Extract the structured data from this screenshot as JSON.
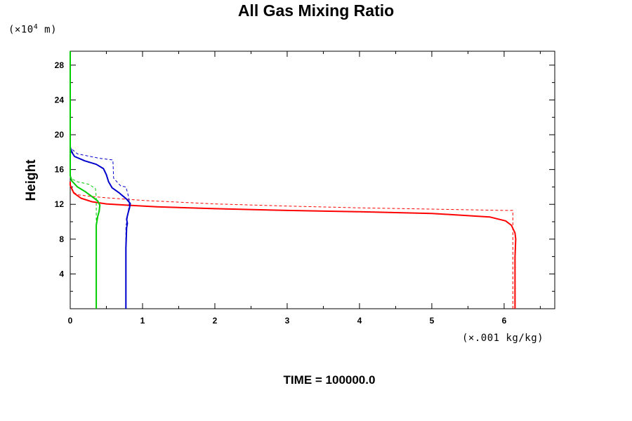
{
  "chart_data": {
    "type": "line",
    "title": "All Gas Mixing Ratio",
    "ylabel": "Height",
    "y_unit_prefix": "(×10",
    "y_unit_exp": "4",
    "y_unit_suffix": " m)",
    "x_unit": "(×.001 kg/kg)",
    "footer": "TIME = 100000.0",
    "xlim": [
      0,
      6.7
    ],
    "ylim": [
      0,
      29.6
    ],
    "x_ticks": [
      "0",
      "1",
      "2",
      "3",
      "4",
      "5",
      "6"
    ],
    "y_ticks": [
      "4",
      "8",
      "12",
      "16",
      "20",
      "24",
      "28"
    ],
    "grid": false,
    "series": [
      {
        "color": "#ff0000",
        "style": "solid",
        "points": [
          [
            6.15,
            0
          ],
          [
            6.15,
            6
          ],
          [
            6.16,
            8
          ],
          [
            6.15,
            8.7
          ],
          [
            6.1,
            9.6
          ],
          [
            6.02,
            10.1
          ],
          [
            5.8,
            10.55
          ],
          [
            5.0,
            10.95
          ],
          [
            4.0,
            11.15
          ],
          [
            3.0,
            11.3
          ],
          [
            2.0,
            11.5
          ],
          [
            1.2,
            11.72
          ],
          [
            0.8,
            11.9
          ],
          [
            0.5,
            12.05
          ],
          [
            0.3,
            12.3
          ],
          [
            0.15,
            12.7
          ],
          [
            0.05,
            13.3
          ],
          [
            0.0,
            14.2
          ],
          [
            0.0,
            14.6
          ]
        ]
      },
      {
        "color": "#ff0000",
        "style": "dashed",
        "points": [
          [
            6.12,
            0
          ],
          [
            6.12,
            11.3
          ],
          [
            6.0,
            11.3
          ],
          [
            5.0,
            11.45
          ],
          [
            4.0,
            11.6
          ],
          [
            3.0,
            11.8
          ],
          [
            2.0,
            12.05
          ],
          [
            1.0,
            12.45
          ],
          [
            0.5,
            12.75
          ],
          [
            0.3,
            12.9
          ],
          [
            0.1,
            13.1
          ],
          [
            0.03,
            13.5
          ],
          [
            0.0,
            14.2
          ]
        ]
      },
      {
        "color": "#0000cc",
        "style": "solid",
        "points": [
          [
            0.77,
            0
          ],
          [
            0.77,
            7
          ],
          [
            0.78,
            9.3
          ],
          [
            0.79,
            9.8
          ],
          [
            0.78,
            10.3
          ],
          [
            0.8,
            11.0
          ],
          [
            0.82,
            11.6
          ],
          [
            0.83,
            12.1
          ],
          [
            0.78,
            12.6
          ],
          [
            0.68,
            13.3
          ],
          [
            0.58,
            13.9
          ],
          [
            0.53,
            14.6
          ],
          [
            0.5,
            15.4
          ],
          [
            0.46,
            16.1
          ],
          [
            0.36,
            16.6
          ],
          [
            0.2,
            17.0
          ],
          [
            0.06,
            17.5
          ],
          [
            0.02,
            18.0
          ],
          [
            0.0,
            18.6
          ],
          [
            0.0,
            19.0
          ]
        ]
      },
      {
        "color": "#0000cc",
        "style": "dashed",
        "points": [
          [
            0.77,
            0
          ],
          [
            0.77,
            9.4
          ],
          [
            0.8,
            11.0
          ],
          [
            0.82,
            12.3
          ],
          [
            0.8,
            13.1
          ],
          [
            0.77,
            14.0
          ],
          [
            0.7,
            14.1
          ],
          [
            0.6,
            15.0
          ],
          [
            0.59,
            17.1
          ],
          [
            0.4,
            17.3
          ],
          [
            0.1,
            17.8
          ],
          [
            0.0,
            18.5
          ]
        ]
      },
      {
        "color": "#00cc00",
        "style": "solid",
        "points": [
          [
            0.36,
            0
          ],
          [
            0.36,
            9.6
          ],
          [
            0.38,
            10.6
          ],
          [
            0.4,
            11.2
          ],
          [
            0.41,
            11.9
          ],
          [
            0.38,
            12.4
          ],
          [
            0.3,
            12.9
          ],
          [
            0.2,
            13.5
          ],
          [
            0.1,
            14.0
          ],
          [
            0.02,
            14.7
          ],
          [
            0.0,
            15.3
          ],
          [
            0.0,
            29.6
          ]
        ]
      },
      {
        "color": "#00cc00",
        "style": "dashed",
        "points": [
          [
            0.36,
            0
          ],
          [
            0.36,
            12.8
          ],
          [
            0.35,
            13.8
          ],
          [
            0.26,
            14.3
          ],
          [
            0.1,
            14.6
          ],
          [
            0.0,
            15.0
          ]
        ]
      }
    ]
  }
}
